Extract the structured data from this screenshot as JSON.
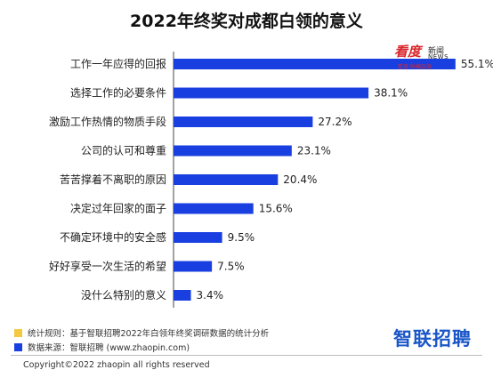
{
  "chart_data": {
    "type": "bar",
    "orientation": "horizontal",
    "title": "2022年终奖对成都白领的意义",
    "categories": [
      "工作一年应得的回报",
      "选择工作的必要条件",
      "激励工作热情的物质手段",
      "公司的认可和尊重",
      "苦苦撑着不离职的原因",
      "决定过年回家的面子",
      "不确定环境中的安全感",
      "好好享受一次生活的希望",
      "没什么特别的意义"
    ],
    "values": [
      55.1,
      38.1,
      27.2,
      23.1,
      20.4,
      15.6,
      9.5,
      7.5,
      3.4
    ],
    "value_labels": [
      "55.1%",
      "38.1%",
      "27.2%",
      "23.1%",
      "20.4%",
      "15.6%",
      "9.5%",
      "7.5%",
      "3.4%"
    ],
    "unit": "%",
    "xlim": [
      0,
      60
    ],
    "grid": false,
    "bar_color": "#1a3fe0"
  },
  "watermark": {
    "main": "看度",
    "cn": "新闻",
    "en": "NEWS",
    "sub": "看度·纵横四海"
  },
  "notes": {
    "rule_label": "统计规则：基于智联招聘2022年白领年终奖调研数据的统计分析",
    "rule_color": "#f5c842",
    "source_label": "数据来源：智联招聘 (www.zhaopin.com)",
    "source_color": "#1a3fe0"
  },
  "brand": {
    "logo_text": "智联招聘",
    "color": "#1a56c8"
  },
  "footer": {
    "copyright": "Copyright©2022 zhaopin all rights reserved"
  }
}
